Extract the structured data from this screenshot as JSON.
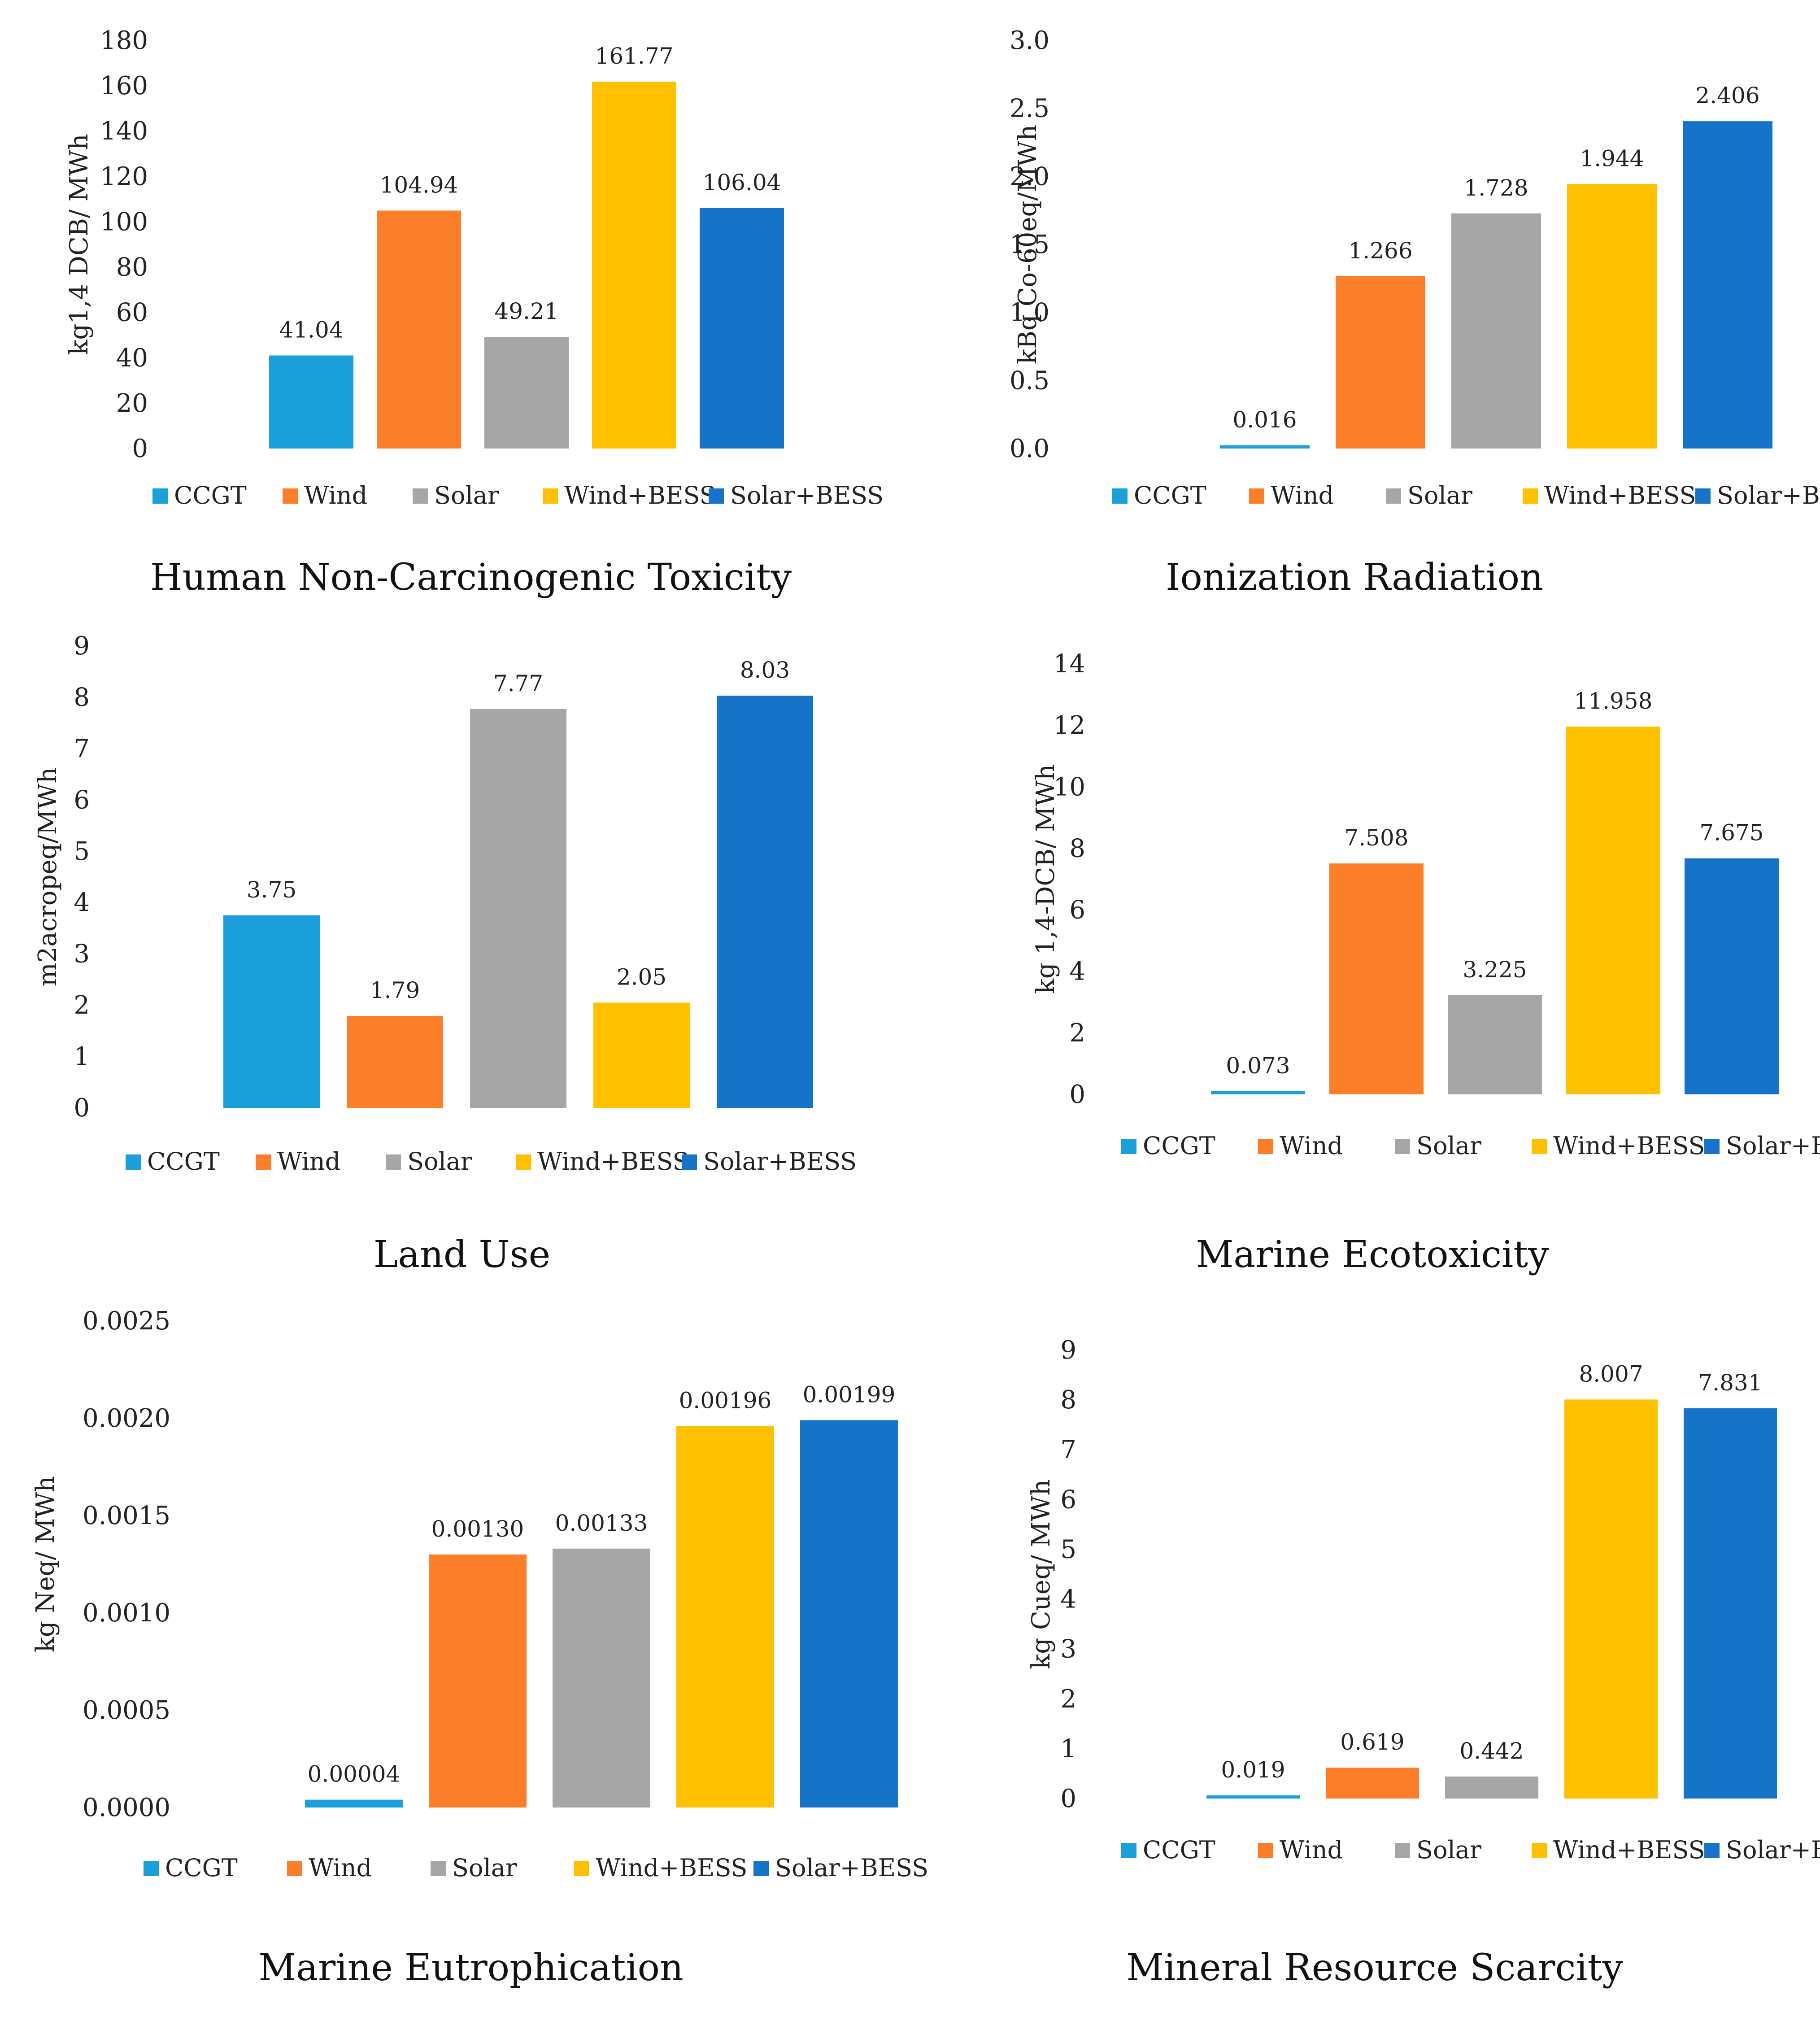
{
  "legend_categories": [
    "CCGT",
    "Wind",
    "Solar",
    "Wind+BESS",
    "Solar+BESS"
  ],
  "colors": {
    "CCGT": "#1a9fdb",
    "Wind": "#fd7e29",
    "Solar": "#a6a6a6",
    "Wind+BESS": "#ffc000",
    "Solar+BESS": "#1573c8"
  },
  "chart_data": [
    {
      "type": "bar",
      "title": "Human Non-Carcinogenic Toxicity",
      "ylabel": "kg1,4 DCB/ MWh",
      "categories": [
        "CCGT",
        "Wind",
        "Solar",
        "Wind+BESS",
        "Solar+BESS"
      ],
      "values": [
        41.04,
        104.94,
        49.21,
        161.77,
        106.04
      ],
      "value_labels": [
        "41.04",
        "104.94",
        "49.21",
        "161.77",
        "106.04"
      ],
      "ylim": [
        0,
        180
      ],
      "yticks": [
        "0",
        "20",
        "40",
        "60",
        "80",
        "100",
        "120",
        "140",
        "160",
        "180"
      ],
      "legend": "bottom"
    },
    {
      "type": "bar",
      "title": "Ionization Radiation",
      "ylabel": "kBq Co-60eq/MWh",
      "categories": [
        "CCGT",
        "Wind",
        "Solar",
        "Wind+BESS",
        "Solar+BESS"
      ],
      "values": [
        0.016,
        1.266,
        1.728,
        1.944,
        2.406
      ],
      "value_labels": [
        "0.016",
        "1.266",
        "1.728",
        "1.944",
        "2.406"
      ],
      "ylim": [
        0,
        3.0
      ],
      "yticks": [
        "0.0",
        "0.5",
        "1.0",
        "1.5",
        "2.0",
        "2.5",
        "3.0"
      ],
      "legend": "bottom"
    },
    {
      "type": "bar",
      "title": "Land Use",
      "ylabel": "m2acropeq/MWh",
      "categories": [
        "CCGT",
        "Wind",
        "Solar",
        "Wind+BESS",
        "Solar+BESS"
      ],
      "values": [
        3.75,
        1.79,
        7.77,
        2.05,
        8.03
      ],
      "value_labels": [
        "3.75",
        "1.79",
        "7.77",
        "2.05",
        "8.03"
      ],
      "ylim": [
        0,
        9
      ],
      "yticks": [
        "0",
        "1",
        "2",
        "3",
        "4",
        "5",
        "6",
        "7",
        "8",
        "9"
      ],
      "legend": "bottom"
    },
    {
      "type": "bar",
      "title": "Marine Ecotoxicity",
      "ylabel": "kg 1,4-DCB/ MWh",
      "categories": [
        "CCGT",
        "Wind",
        "Solar",
        "Wind+BESS",
        "Solar+BESS"
      ],
      "values": [
        0.073,
        7.508,
        3.225,
        11.958,
        7.675
      ],
      "value_labels": [
        "0.073",
        "7.508",
        "3.225",
        "11.958",
        "7.675"
      ],
      "ylim": [
        0,
        14
      ],
      "yticks": [
        "0",
        "2",
        "4",
        "6",
        "8",
        "10",
        "12",
        "14"
      ],
      "legend": "bottom"
    },
    {
      "type": "bar",
      "title": "Marine Eutrophication",
      "ylabel": "kg Neq/ MWh",
      "categories": [
        "CCGT",
        "Wind",
        "Solar",
        "Wind+BESS",
        "Solar+BESS"
      ],
      "values": [
        4e-05,
        0.0013,
        0.00133,
        0.00196,
        0.00199
      ],
      "value_labels": [
        "0.00004",
        "0.00130",
        "0.00133",
        "0.00196",
        "0.00199"
      ],
      "ylim": [
        0,
        0.0025
      ],
      "yticks": [
        "0.0000",
        "0.0005",
        "0.0010",
        "0.0015",
        "0.0020",
        "0.0025"
      ],
      "legend": "bottom"
    },
    {
      "type": "bar",
      "title": "Mineral Resource Scarcity",
      "ylabel": "kg Cueq/ MWh",
      "categories": [
        "CCGT",
        "Wind",
        "Solar",
        "Wind+BESS",
        "Solar+BESS"
      ],
      "values": [
        0.019,
        0.619,
        0.442,
        8.007,
        7.831
      ],
      "value_labels": [
        "0.019",
        "0.619",
        "0.442",
        "8.007",
        "7.831"
      ],
      "ylim": [
        0,
        9
      ],
      "yticks": [
        "0",
        "1",
        "2",
        "3",
        "4",
        "5",
        "6",
        "7",
        "8",
        "9"
      ],
      "legend": "bottom"
    }
  ]
}
